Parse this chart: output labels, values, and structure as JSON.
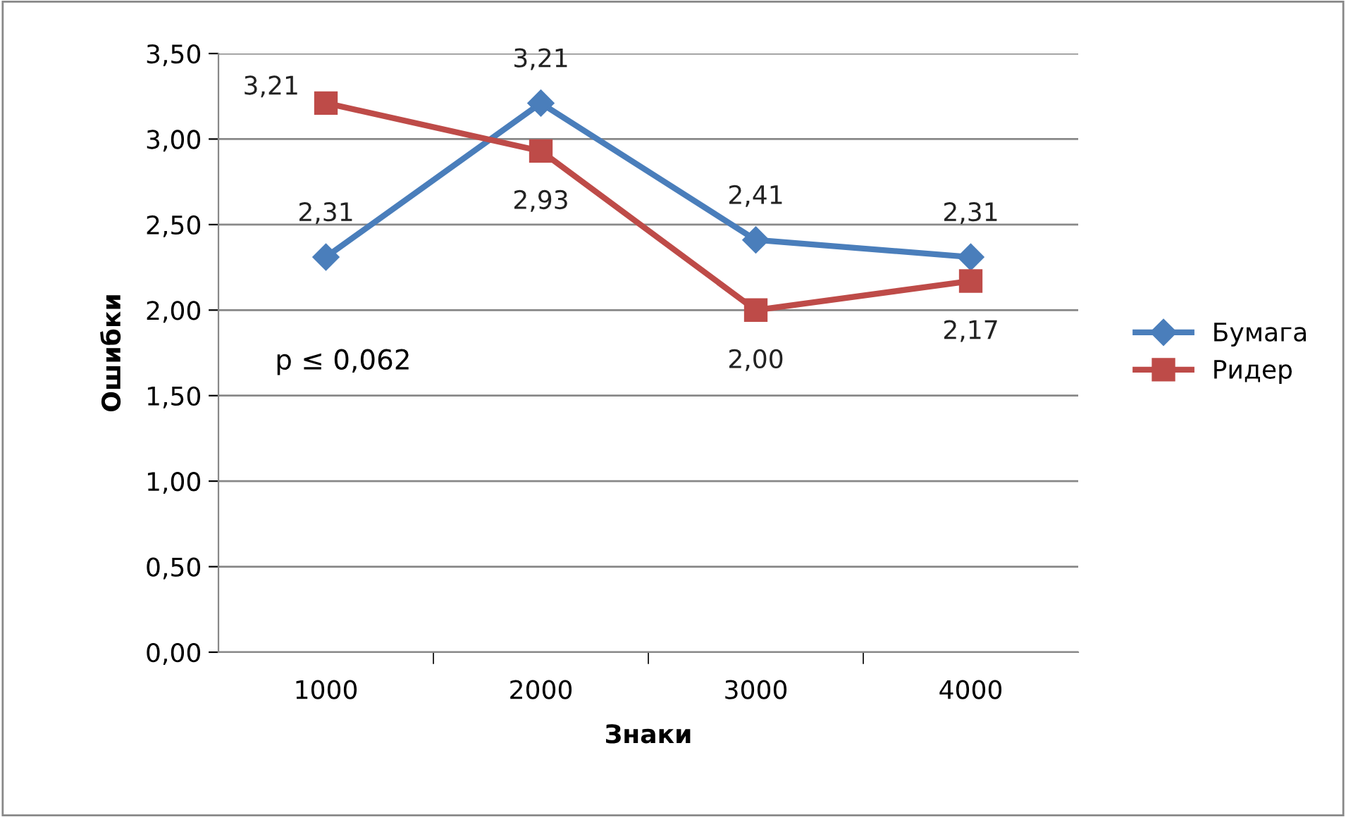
{
  "chart_data": {
    "type": "line",
    "xlabel": "Знаки",
    "ylabel": "Ошибки",
    "categories": [
      "1000",
      "2000",
      "3000",
      "4000"
    ],
    "series": [
      {
        "name": "Бумага",
        "color": "#4a7ebb",
        "marker": "diamond",
        "values": [
          2.31,
          3.21,
          2.41,
          2.31
        ],
        "value_labels": [
          "2,31",
          "3,21",
          "2,41",
          "2,31"
        ]
      },
      {
        "name": "Ридер",
        "color": "#be4b48",
        "marker": "square",
        "values": [
          3.21,
          2.93,
          2.0,
          2.17
        ],
        "value_labels": [
          "3,21",
          "2,93",
          "2,00",
          "2,17"
        ]
      }
    ],
    "ylim": [
      0,
      3.5
    ],
    "yticks": [
      {
        "value": 0,
        "label": "0,00"
      },
      {
        "value": 0.5,
        "label": "0,50"
      },
      {
        "value": 1,
        "label": "1,00"
      },
      {
        "value": 1.5,
        "label": "1,50"
      },
      {
        "value": 2,
        "label": "2,00"
      },
      {
        "value": 2.5,
        "label": "2,50"
      },
      {
        "value": 3,
        "label": "3,00"
      },
      {
        "value": 3.5,
        "label": "3,50"
      }
    ],
    "grid": "y",
    "legend": "right",
    "line_style": "solid",
    "annotations": [
      "p ≤ 0,062"
    ]
  }
}
